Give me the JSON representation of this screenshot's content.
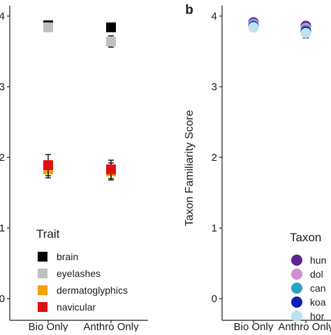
{
  "colors": {
    "axis": "#222222",
    "error_bar": "#111111",
    "brain": "#000000",
    "eyelashes": "#c0c0c0",
    "dermatoglyphics": "#f5a000",
    "navicular": "#e01010",
    "taxon_1": "#5e2590",
    "taxon_2": "#cf8fd3",
    "taxon_3": "#2aa2c8",
    "taxon_4": "#0d1fb5",
    "taxon_5": "#bfe1ef"
  },
  "chart_data": [
    {
      "type": "scatter",
      "panel_label": "",
      "categories": [
        "Bio Only",
        "Anthro Only"
      ],
      "ylabel": "",
      "ylim": [
        0,
        4
      ],
      "yticks": [
        "0",
        "1",
        "2",
        "3",
        "4"
      ],
      "grid": false,
      "legend_placement": "bottom-left",
      "legend": {
        "title": "Trait",
        "entries": [
          "brain",
          "eyelashes",
          "dermatoglyphics",
          "navicular"
        ]
      },
      "marker": "square",
      "series": [
        {
          "name": "brain",
          "color_key": "brain",
          "values": [
            3.87,
            3.84
          ],
          "err": [
            0.03,
            0.03
          ]
        },
        {
          "name": "eyelashes",
          "color_key": "eyelashes",
          "values": [
            3.84,
            3.64
          ],
          "err": [
            0.03,
            0.08
          ]
        },
        {
          "name": "dermatoglyphics",
          "color_key": "dermatoglyphics",
          "values": [
            1.83,
            1.8
          ],
          "err": [
            0.12,
            0.12
          ]
        },
        {
          "name": "navicular",
          "color_key": "navicular",
          "values": [
            1.89,
            1.83
          ],
          "err": [
            0.15,
            0.13
          ]
        }
      ]
    },
    {
      "type": "scatter",
      "panel_label": "b",
      "categories": [
        "Bio Only",
        "Anthro Only"
      ],
      "ylabel": "Taxon Familiarity Score",
      "ylim": [
        0,
        4
      ],
      "yticks": [
        "0",
        "1",
        "2",
        "3",
        "4"
      ],
      "grid": false,
      "legend_placement": "bottom-right",
      "legend": {
        "title": "Taxon",
        "entries": [
          "hun",
          "dol",
          "can",
          "koa",
          "hor"
        ]
      },
      "marker": "circle",
      "series": [
        {
          "name": "hun",
          "color_key": "taxon_1",
          "values": [
            3.91,
            3.86
          ],
          "err": [
            0.03,
            0.05
          ]
        },
        {
          "name": "dol",
          "color_key": "taxon_2",
          "values": [
            3.89,
            3.83
          ],
          "err": [
            0.03,
            0.05
          ]
        },
        {
          "name": "can",
          "color_key": "taxon_3",
          "values": [
            3.87,
            3.8
          ],
          "err": [
            0.03,
            0.06
          ]
        },
        {
          "name": "koa",
          "color_key": "taxon_4",
          "values": [
            3.85,
            3.78
          ],
          "err": [
            0.03,
            0.06
          ]
        },
        {
          "name": "hor",
          "color_key": "taxon_5",
          "values": [
            3.84,
            3.76
          ],
          "err": [
            0.03,
            0.07
          ]
        }
      ]
    }
  ]
}
